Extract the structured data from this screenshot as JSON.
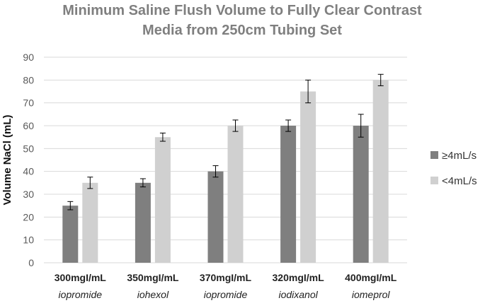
{
  "chart_data": {
    "type": "bar",
    "title_lines": [
      "Minimum Saline Flush Volume to Fully Clear Contrast",
      "Media from 250cm Tubing Set"
    ],
    "ylabel": "Volume NaCl (mL)",
    "xlabel": "",
    "ylim": [
      0,
      90
    ],
    "yticks": [
      0,
      10,
      20,
      30,
      40,
      50,
      60,
      70,
      80,
      90
    ],
    "grid": true,
    "legend_position": "right",
    "categories": [
      "300mgI/mL",
      "350mgI/mL",
      "370mgI/mL",
      "320mgI/mL",
      "400mgI/mL"
    ],
    "category_sublabels": [
      "iopromide",
      "iohexol",
      "iopromide",
      "iodixanol",
      "iomeprol"
    ],
    "series": [
      {
        "name": "≥4mL/s",
        "color": "#7f7f7f",
        "values": [
          25,
          35,
          40,
          60,
          60
        ],
        "errors": [
          1.8,
          1.8,
          2.5,
          2.5,
          5
        ]
      },
      {
        "name": "<4mL/s",
        "color": "#d0d0d0",
        "values": [
          35,
          55,
          60,
          75,
          80
        ],
        "errors": [
          2.5,
          1.8,
          2.5,
          5,
          2.5
        ]
      }
    ]
  }
}
